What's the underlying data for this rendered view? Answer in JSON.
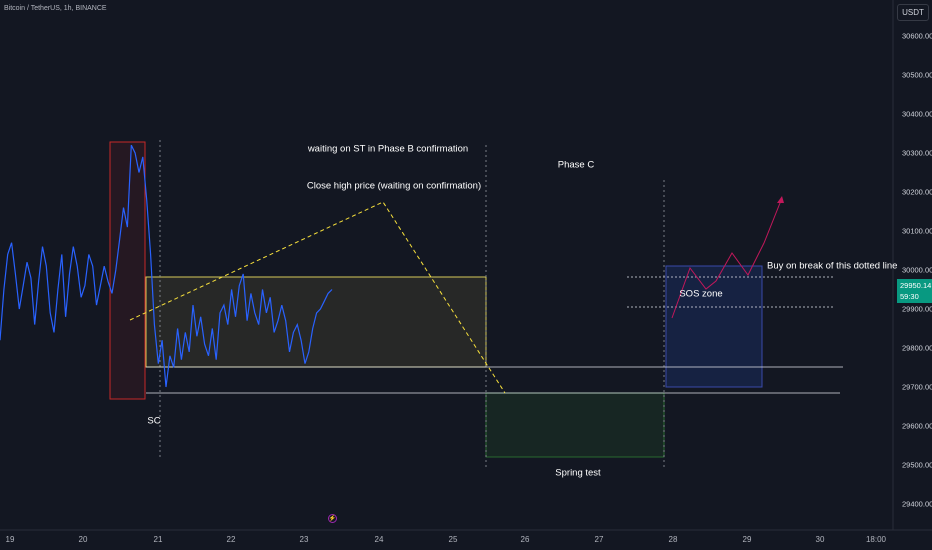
{
  "header": {
    "symbol_title": "Bitcoin / TetherUS, 1h, BINANCE"
  },
  "axis": {
    "currency": "USDT",
    "y_labels": [
      "30600.00",
      "30500.00",
      "30400.00",
      "30300.00",
      "30200.00",
      "30100.00",
      "30000.00",
      "29900.00",
      "29800.00",
      "29700.00",
      "29600.00",
      "29500.00",
      "29400.00"
    ],
    "x_labels": [
      "19",
      "20",
      "21",
      "22",
      "23",
      "24",
      "25",
      "26",
      "27",
      "28",
      "29",
      "30",
      "18:00"
    ],
    "last_price": "29950.14",
    "countdown": "59:30"
  },
  "annotations": {
    "phase_b": "waiting on ST in Phase B confirmation",
    "close_high": "Close high price (waiting on confirmation)",
    "phase_c": "Phase C",
    "buy_break": "Buy on break of this dotted line",
    "sos_zone": "SOS zone",
    "spring_test": "Spring test",
    "sc": "SC"
  },
  "event_icon": "lightning-icon",
  "colors": {
    "background": "#131722",
    "price_line": "#2962ff",
    "last_price_tag": "#089981",
    "trend_dashed": "#f7e03c",
    "projection": "#c2185b",
    "range_box": "#d4c95a",
    "sc_box": "#c62828"
  },
  "chart_data": {
    "type": "line",
    "title": "Bitcoin / TetherUS, 1h, BINANCE",
    "ylim": [
      29350,
      30650
    ],
    "series": [
      {
        "values": [
          29820,
          29950,
          30040,
          30070,
          29990,
          29900,
          29960,
          30020,
          29980,
          29860,
          29970,
          30060,
          30010,
          29890,
          29840,
          29950,
          30040,
          29880,
          29990,
          30060,
          30010,
          29930,
          29960,
          30040,
          30010,
          29910,
          29960,
          30010,
          29970,
          29940,
          30000,
          30080,
          30160,
          30110,
          30320,
          30300,
          30250,
          30290,
          30180,
          30040,
          29860,
          29760,
          29820,
          29700,
          29780,
          29750,
          29850,
          29770,
          29840,
          29790,
          29910,
          29830,
          29880,
          29810,
          29780,
          29850,
          29770,
          29890,
          29910,
          29860,
          29950,
          29880,
          29960,
          29990,
          29870,
          29940,
          29890,
          29860,
          29950,
          29890,
          29930,
          29840,
          29870,
          29910,
          29870,
          29790,
          29840,
          29860,
          29820,
          29760,
          29790,
          29850,
          29890,
          29900,
          29920,
          29940,
          29950
        ]
      }
    ],
    "levels": [
      {
        "name": "range-top",
        "value": 29975
      },
      {
        "name": "range-bottom",
        "value": 29755
      },
      {
        "name": "support",
        "value": 29690
      },
      {
        "name": "dotted-upper",
        "value": 29975
      },
      {
        "name": "dotted-lower",
        "value": 29910
      }
    ]
  }
}
